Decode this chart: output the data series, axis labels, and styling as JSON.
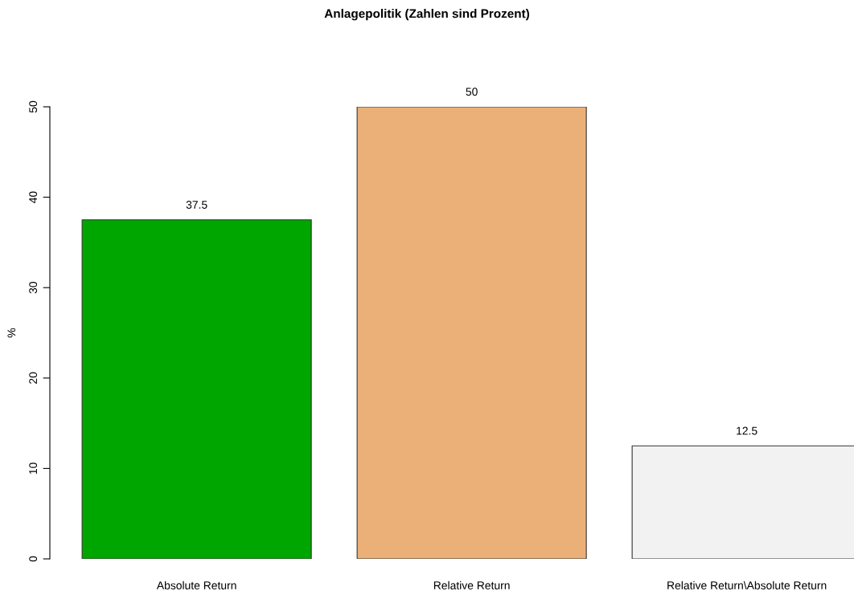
{
  "chart_data": {
    "type": "bar",
    "title": "Anlagepolitik (Zahlen sind Prozent)",
    "ylabel": "%",
    "categories": [
      "Absolute Return",
      "Relative Return",
      "Relative Return\\Absolute Return"
    ],
    "values": [
      37.5,
      50,
      12.5
    ],
    "colors": [
      "#00a600",
      "#ebb077",
      "#f2f2f2"
    ],
    "ylim": [
      0,
      50
    ],
    "yticks": [
      0,
      10,
      20,
      30,
      40,
      50
    ],
    "data_labels": true,
    "grid": false
  }
}
